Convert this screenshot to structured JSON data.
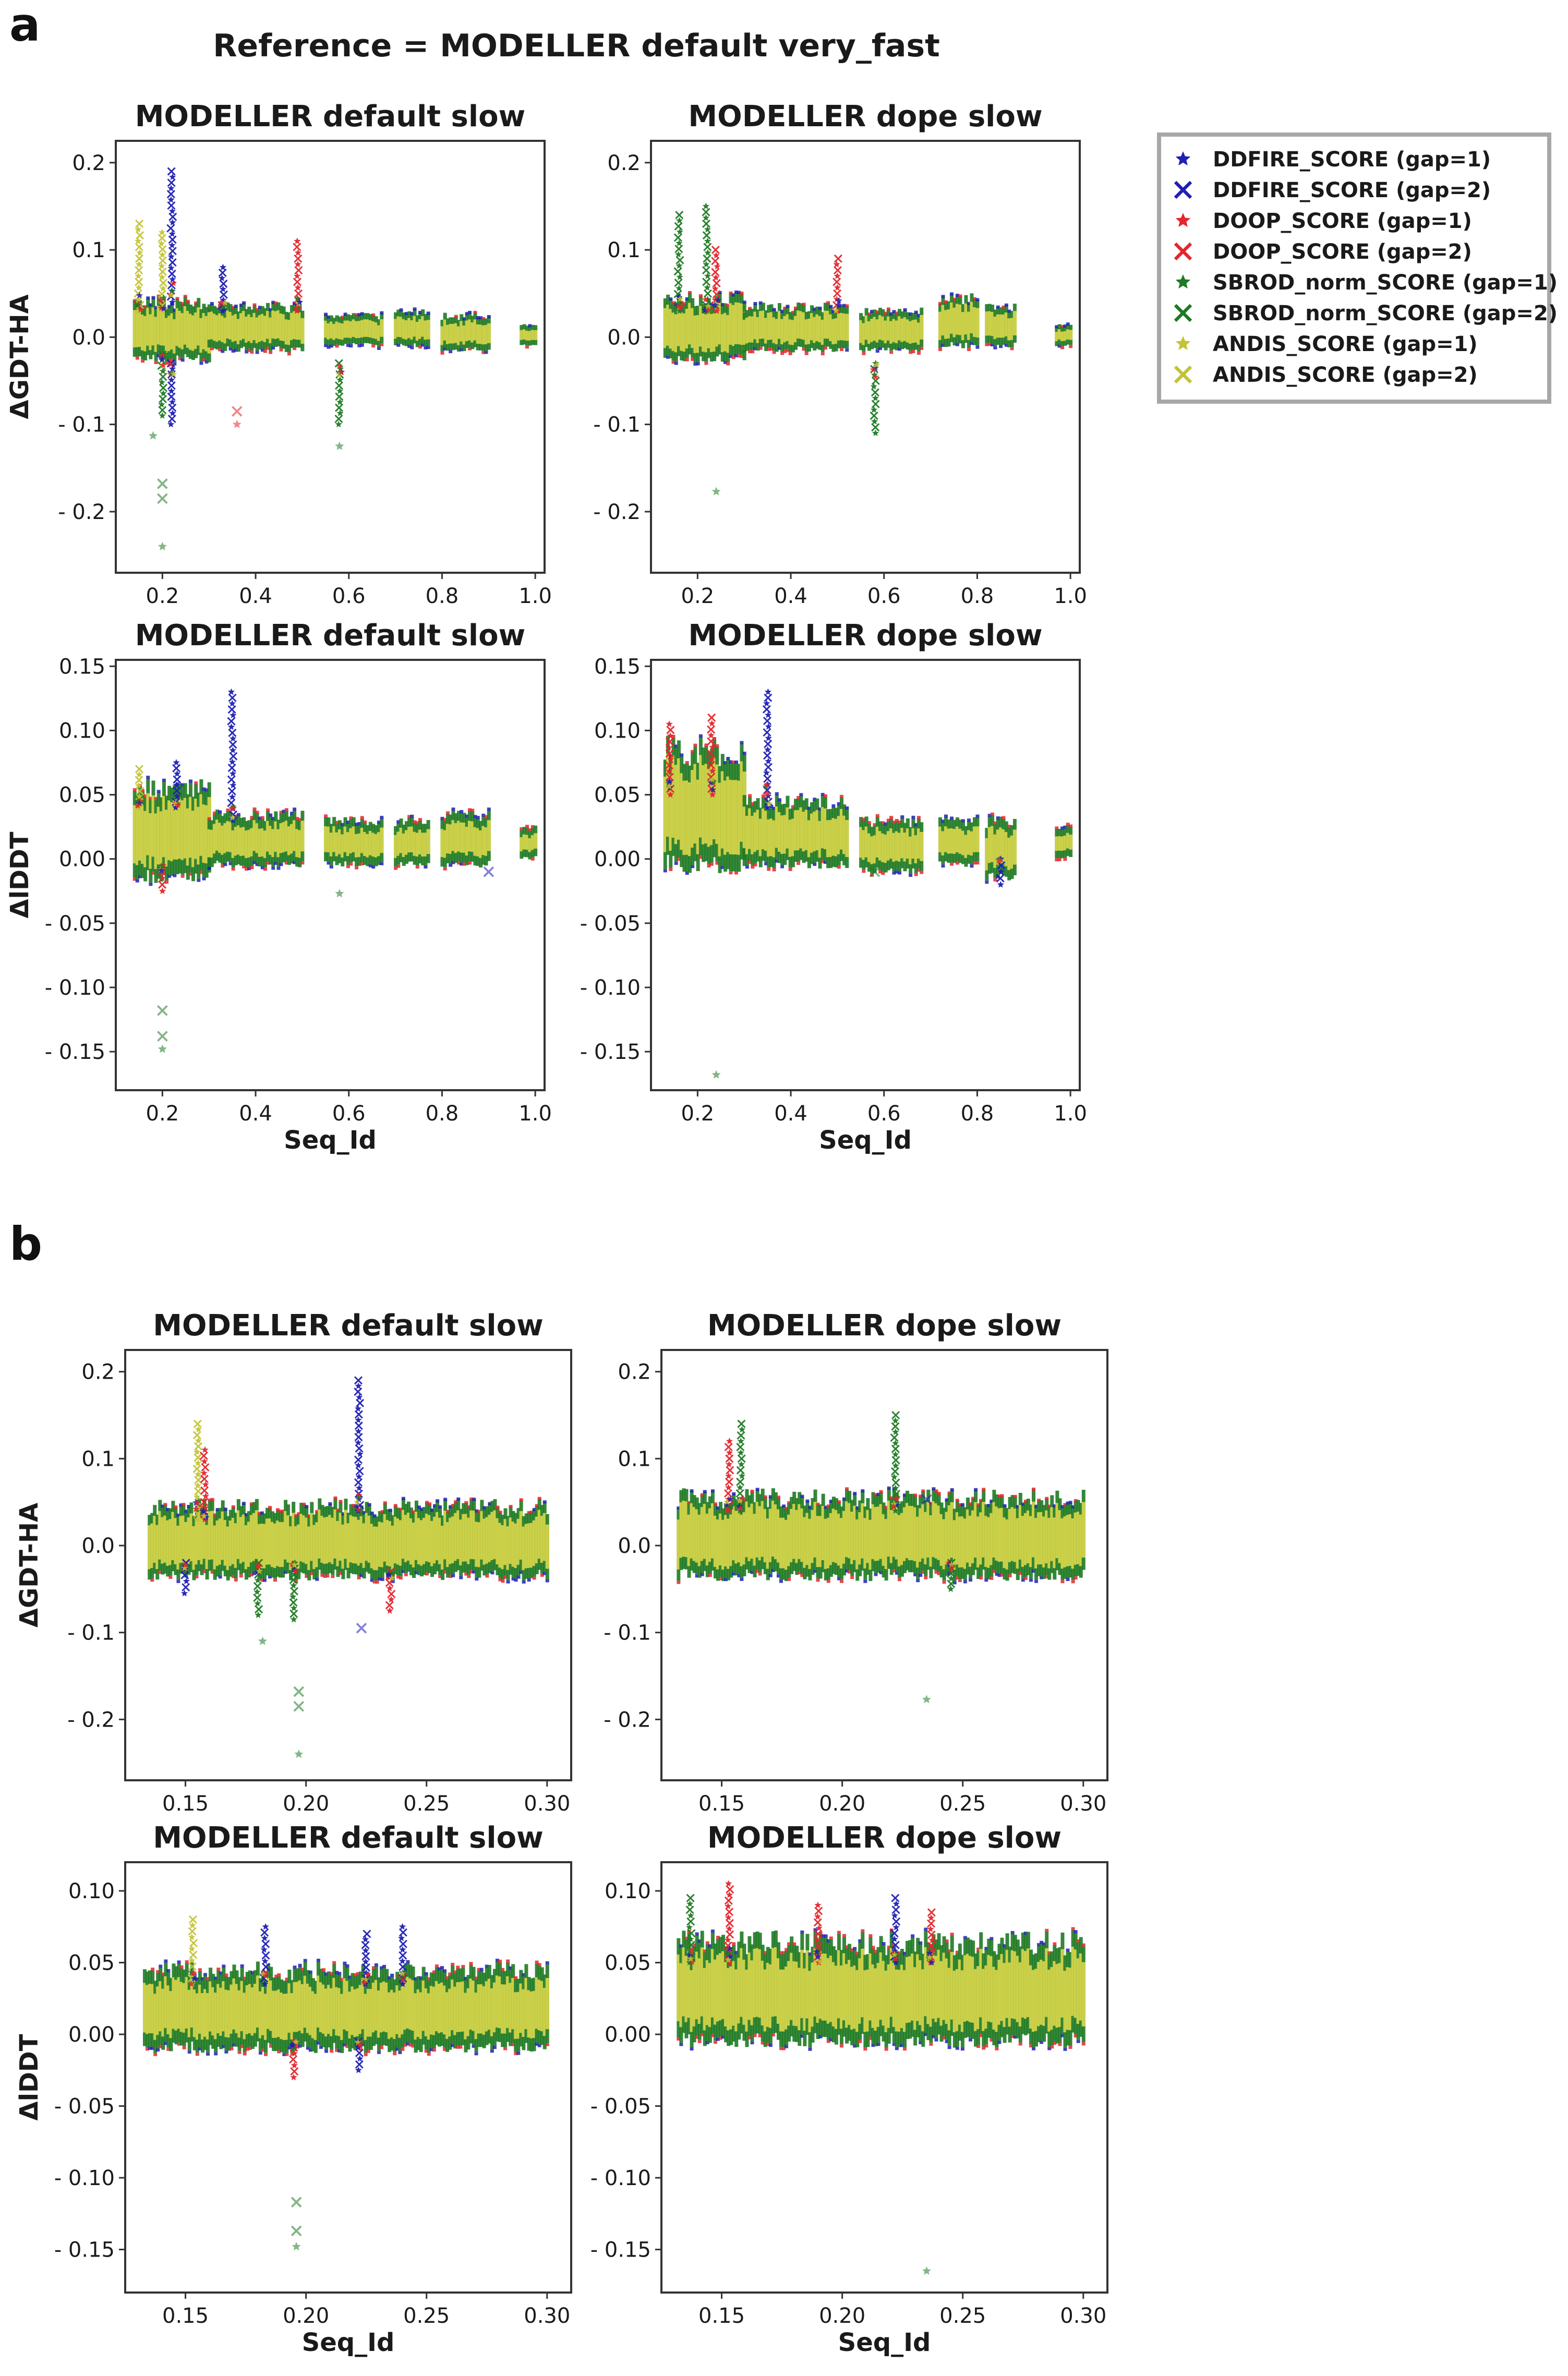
{
  "figure": {
    "panel_a_letter": "a",
    "panel_b_letter": "b",
    "panel_a_title": "Reference = MODELLER default very_fast"
  },
  "colors": {
    "DDFIRE": "#1f1fb4",
    "DOOP": "#e3262d",
    "SBROD": "#1f7a24",
    "ANDIS": "#c2c437",
    "ANDIS_core": "#d4d44a"
  },
  "legend": [
    {
      "label": "DDFIRE_SCORE (gap=1)",
      "marker": "star",
      "color": "#1f1fb4"
    },
    {
      "label": "DDFIRE_SCORE (gap=2)",
      "marker": "x",
      "color": "#1f1fb4"
    },
    {
      "label": "DOOP_SCORE (gap=1)",
      "marker": "star",
      "color": "#e3262d"
    },
    {
      "label": "DOOP_SCORE (gap=2)",
      "marker": "x",
      "color": "#e3262d"
    },
    {
      "label": "SBROD_norm_SCORE (gap=1)",
      "marker": "star",
      "color": "#1f7a24"
    },
    {
      "label": "SBROD_norm_SCORE (gap=2)",
      "marker": "x",
      "color": "#1f7a24"
    },
    {
      "label": "ANDIS_SCORE (gap=1)",
      "marker": "star",
      "color": "#c2c437"
    },
    {
      "label": "ANDIS_SCORE (gap=2)",
      "marker": "x",
      "color": "#c2c437"
    }
  ],
  "chart_data": [
    {
      "id": "a1",
      "type": "scatter",
      "title": "MODELLER default slow",
      "xlabel": "",
      "ylabel": "ΔGDT-HA",
      "xlim": [
        0.1,
        1.02
      ],
      "ylim": [
        -0.27,
        0.225
      ],
      "xticks": [
        0.2,
        0.4,
        0.6,
        0.8,
        1.0
      ],
      "xtick_labels": [
        "0.2",
        "0.4",
        "0.6",
        "0.8",
        "1.0"
      ],
      "yticks": [
        0.2,
        0.1,
        0.0,
        -0.1,
        -0.2
      ],
      "ytick_labels": [
        "0.2",
        "0.1",
        "0.0",
        "- 0.1",
        "- 0.2"
      ],
      "clusters": [
        {
          "x0": 0.14,
          "x1": 0.3,
          "lo": -0.02,
          "hi": 0.035
        },
        {
          "x0": 0.3,
          "x1": 0.5,
          "lo": -0.01,
          "hi": 0.03
        },
        {
          "x0": 0.55,
          "x1": 0.67,
          "lo": -0.005,
          "hi": 0.02
        },
        {
          "x0": 0.7,
          "x1": 0.77,
          "lo": -0.005,
          "hi": 0.025
        },
        {
          "x0": 0.8,
          "x1": 0.9,
          "lo": -0.01,
          "hi": 0.02
        },
        {
          "x0": 0.97,
          "x1": 1.0,
          "lo": -0.005,
          "hi": 0.01
        }
      ],
      "spikes": [
        {
          "x": 0.15,
          "lo": 0.03,
          "hi": 0.13,
          "s": "ANDIS"
        },
        {
          "x": 0.2,
          "lo": 0.03,
          "hi": 0.12,
          "s": "ANDIS"
        },
        {
          "x": 0.22,
          "lo": 0.04,
          "hi": 0.19,
          "s": "DDFIRE"
        },
        {
          "x": 0.33,
          "lo": 0.03,
          "hi": 0.08,
          "s": "DDFIRE"
        },
        {
          "x": 0.49,
          "lo": 0.03,
          "hi": 0.11,
          "s": "DOOP"
        },
        {
          "x": 0.2,
          "lo": -0.09,
          "hi": -0.02,
          "s": "SBROD"
        },
        {
          "x": 0.22,
          "lo": -0.1,
          "hi": -0.03,
          "s": "DDFIRE"
        },
        {
          "x": 0.58,
          "lo": -0.1,
          "hi": -0.03,
          "s": "SBROD"
        }
      ],
      "outliers": [
        {
          "x": 0.18,
          "y": -0.113,
          "s": "SBROD",
          "m": "star"
        },
        {
          "x": 0.2,
          "y": -0.168,
          "s": "SBROD",
          "m": "x"
        },
        {
          "x": 0.2,
          "y": -0.185,
          "s": "SBROD",
          "m": "x"
        },
        {
          "x": 0.2,
          "y": -0.24,
          "s": "SBROD",
          "m": "star"
        },
        {
          "x": 0.36,
          "y": -0.085,
          "s": "DOOP",
          "m": "x"
        },
        {
          "x": 0.36,
          "y": -0.1,
          "s": "DOOP",
          "m": "star"
        },
        {
          "x": 0.58,
          "y": -0.125,
          "s": "SBROD",
          "m": "star"
        }
      ]
    },
    {
      "id": "a2",
      "type": "scatter",
      "title": "MODELLER dope slow",
      "xlabel": "",
      "ylabel": "",
      "xlim": [
        0.1,
        1.02
      ],
      "ylim": [
        -0.27,
        0.225
      ],
      "xticks": [
        0.2,
        0.4,
        0.6,
        0.8,
        1.0
      ],
      "xtick_labels": [
        "0.2",
        "0.4",
        "0.6",
        "0.8",
        "1.0"
      ],
      "yticks": [
        0.2,
        0.1,
        0.0,
        -0.1,
        -0.2
      ],
      "ytick_labels": [
        "0.2",
        "0.1",
        "0.0",
        "- 0.1",
        "- 0.2"
      ],
      "clusters": [
        {
          "x0": 0.13,
          "x1": 0.3,
          "lo": -0.02,
          "hi": 0.04
        },
        {
          "x0": 0.3,
          "x1": 0.52,
          "lo": -0.01,
          "hi": 0.03
        },
        {
          "x0": 0.55,
          "x1": 0.68,
          "lo": -0.01,
          "hi": 0.025
        },
        {
          "x0": 0.72,
          "x1": 0.8,
          "lo": -0.005,
          "hi": 0.04
        },
        {
          "x0": 0.82,
          "x1": 0.88,
          "lo": -0.005,
          "hi": 0.03
        },
        {
          "x0": 0.97,
          "x1": 1.0,
          "lo": -0.005,
          "hi": 0.01
        }
      ],
      "spikes": [
        {
          "x": 0.16,
          "lo": 0.03,
          "hi": 0.14,
          "s": "SBROD"
        },
        {
          "x": 0.22,
          "lo": 0.03,
          "hi": 0.15,
          "s": "SBROD"
        },
        {
          "x": 0.24,
          "lo": 0.03,
          "hi": 0.1,
          "s": "DOOP"
        },
        {
          "x": 0.5,
          "lo": 0.03,
          "hi": 0.09,
          "s": "DOOP"
        },
        {
          "x": 0.58,
          "lo": -0.11,
          "hi": -0.03,
          "s": "SBROD"
        }
      ],
      "outliers": [
        {
          "x": 0.24,
          "y": -0.177,
          "s": "SBROD",
          "m": "star"
        }
      ]
    },
    {
      "id": "a3",
      "type": "scatter",
      "title": "MODELLER default slow",
      "xlabel": "Seq_Id",
      "ylabel": "ΔlDDT",
      "xlim": [
        0.1,
        1.02
      ],
      "ylim": [
        -0.18,
        0.155
      ],
      "xticks": [
        0.2,
        0.4,
        0.6,
        0.8,
        1.0
      ],
      "xtick_labels": [
        "0.2",
        "0.4",
        "0.6",
        "0.8",
        "1.0"
      ],
      "yticks": [
        0.15,
        0.1,
        0.05,
        0.0,
        -0.05,
        -0.1,
        -0.15
      ],
      "ytick_labels": [
        "0.15",
        "0.10",
        "0.05",
        "0.00",
        "- 0.05",
        "- 0.10",
        "- 0.15"
      ],
      "clusters": [
        {
          "x0": 0.14,
          "x1": 0.3,
          "lo": -0.01,
          "hi": 0.05
        },
        {
          "x0": 0.3,
          "x1": 0.5,
          "lo": 0.0,
          "hi": 0.03
        },
        {
          "x0": 0.55,
          "x1": 0.67,
          "lo": 0.0,
          "hi": 0.025
        },
        {
          "x0": 0.7,
          "x1": 0.77,
          "lo": 0.0,
          "hi": 0.025
        },
        {
          "x0": 0.8,
          "x1": 0.9,
          "lo": 0.0,
          "hi": 0.03
        },
        {
          "x0": 0.97,
          "x1": 1.0,
          "lo": 0.005,
          "hi": 0.02
        }
      ],
      "spikes": [
        {
          "x": 0.15,
          "lo": 0.04,
          "hi": 0.07,
          "s": "ANDIS"
        },
        {
          "x": 0.23,
          "lo": 0.04,
          "hi": 0.075,
          "s": "DDFIRE"
        },
        {
          "x": 0.35,
          "lo": 0.03,
          "hi": 0.13,
          "s": "DDFIRE"
        },
        {
          "x": 0.2,
          "lo": -0.025,
          "hi": -0.005,
          "s": "DOOP"
        }
      ],
      "outliers": [
        {
          "x": 0.2,
          "y": -0.118,
          "s": "SBROD",
          "m": "x"
        },
        {
          "x": 0.2,
          "y": -0.138,
          "s": "SBROD",
          "m": "x"
        },
        {
          "x": 0.2,
          "y": -0.148,
          "s": "SBROD",
          "m": "star"
        },
        {
          "x": 0.58,
          "y": -0.027,
          "s": "SBROD",
          "m": "star"
        },
        {
          "x": 0.9,
          "y": -0.01,
          "s": "DDFIRE",
          "m": "x"
        }
      ]
    },
    {
      "id": "a4",
      "type": "scatter",
      "title": "MODELLER dope slow",
      "xlabel": "Seq_Id",
      "ylabel": "",
      "xlim": [
        0.1,
        1.02
      ],
      "ylim": [
        -0.18,
        0.155
      ],
      "xticks": [
        0.2,
        0.4,
        0.6,
        0.8,
        1.0
      ],
      "xtick_labels": [
        "0.2",
        "0.4",
        "0.6",
        "0.8",
        "1.0"
      ],
      "yticks": [
        0.15,
        0.1,
        0.05,
        0.0,
        -0.05,
        -0.1,
        -0.15
      ],
      "ytick_labels": [
        "0.15",
        "0.10",
        "0.05",
        "0.00",
        "- 0.05",
        "- 0.10",
        "- 0.15"
      ],
      "clusters": [
        {
          "x0": 0.13,
          "x1": 0.3,
          "lo": 0.0,
          "hi": 0.08
        },
        {
          "x0": 0.3,
          "x1": 0.52,
          "lo": 0.0,
          "hi": 0.04
        },
        {
          "x0": 0.55,
          "x1": 0.68,
          "lo": -0.005,
          "hi": 0.025
        },
        {
          "x0": 0.72,
          "x1": 0.8,
          "lo": 0.0,
          "hi": 0.025
        },
        {
          "x0": 0.82,
          "x1": 0.88,
          "lo": -0.01,
          "hi": 0.025
        },
        {
          "x0": 0.97,
          "x1": 1.0,
          "lo": 0.005,
          "hi": 0.02
        }
      ],
      "spikes": [
        {
          "x": 0.14,
          "lo": 0.05,
          "hi": 0.105,
          "s": "DOOP"
        },
        {
          "x": 0.23,
          "lo": 0.05,
          "hi": 0.11,
          "s": "DOOP"
        },
        {
          "x": 0.35,
          "lo": 0.04,
          "hi": 0.13,
          "s": "DDFIRE"
        },
        {
          "x": 0.85,
          "lo": -0.02,
          "hi": 0.0,
          "s": "DDFIRE"
        }
      ],
      "outliers": [
        {
          "x": 0.24,
          "y": -0.168,
          "s": "SBROD",
          "m": "star"
        },
        {
          "x": 0.58,
          "y": -0.01,
          "s": "SBROD",
          "m": "x"
        }
      ]
    },
    {
      "id": "b1",
      "type": "scatter",
      "title": "MODELLER default slow",
      "xlabel": "",
      "ylabel": "ΔGDT-HA",
      "xlim": [
        0.125,
        0.31
      ],
      "ylim": [
        -0.27,
        0.225
      ],
      "xticks": [
        0.15,
        0.2,
        0.25,
        0.3
      ],
      "xtick_labels": [
        "0.15",
        "0.20",
        "0.25",
        "0.30"
      ],
      "yticks": [
        0.2,
        0.1,
        0.0,
        -0.1,
        -0.2
      ],
      "ytick_labels": [
        "0.2",
        "0.1",
        "0.0",
        "- 0.1",
        "- 0.2"
      ],
      "clusters": [
        {
          "x0": 0.135,
          "x1": 0.3,
          "lo": -0.03,
          "hi": 0.04
        }
      ],
      "spikes": [
        {
          "x": 0.155,
          "lo": 0.03,
          "hi": 0.14,
          "s": "ANDIS"
        },
        {
          "x": 0.158,
          "lo": 0.03,
          "hi": 0.11,
          "s": "DOOP"
        },
        {
          "x": 0.222,
          "lo": 0.04,
          "hi": 0.19,
          "s": "DDFIRE"
        },
        {
          "x": 0.18,
          "lo": -0.08,
          "hi": -0.02,
          "s": "SBROD"
        },
        {
          "x": 0.195,
          "lo": -0.085,
          "hi": -0.02,
          "s": "SBROD"
        },
        {
          "x": 0.235,
          "lo": -0.075,
          "hi": -0.03,
          "s": "DOOP"
        },
        {
          "x": 0.15,
          "lo": -0.055,
          "hi": -0.02,
          "s": "DDFIRE"
        }
      ],
      "outliers": [
        {
          "x": 0.182,
          "y": -0.11,
          "s": "SBROD",
          "m": "star"
        },
        {
          "x": 0.197,
          "y": -0.168,
          "s": "SBROD",
          "m": "x"
        },
        {
          "x": 0.197,
          "y": -0.185,
          "s": "SBROD",
          "m": "x"
        },
        {
          "x": 0.197,
          "y": -0.24,
          "s": "SBROD",
          "m": "star"
        },
        {
          "x": 0.223,
          "y": -0.095,
          "s": "DDFIRE",
          "m": "x"
        }
      ]
    },
    {
      "id": "b2",
      "type": "scatter",
      "title": "MODELLER dope slow",
      "xlabel": "",
      "ylabel": "",
      "xlim": [
        0.125,
        0.31
      ],
      "ylim": [
        -0.27,
        0.225
      ],
      "xticks": [
        0.15,
        0.2,
        0.25,
        0.3
      ],
      "xtick_labels": [
        "0.15",
        "0.20",
        "0.25",
        "0.30"
      ],
      "yticks": [
        0.2,
        0.1,
        0.0,
        -0.1,
        -0.2
      ],
      "ytick_labels": [
        "0.2",
        "0.1",
        "0.0",
        "- 0.1",
        "- 0.2"
      ],
      "clusters": [
        {
          "x0": 0.132,
          "x1": 0.3,
          "lo": -0.03,
          "hi": 0.05
        }
      ],
      "spikes": [
        {
          "x": 0.153,
          "lo": 0.04,
          "hi": 0.12,
          "s": "DOOP"
        },
        {
          "x": 0.158,
          "lo": 0.04,
          "hi": 0.14,
          "s": "SBROD"
        },
        {
          "x": 0.222,
          "lo": 0.04,
          "hi": 0.15,
          "s": "SBROD"
        },
        {
          "x": 0.245,
          "lo": -0.05,
          "hi": -0.02,
          "s": "SBROD"
        }
      ],
      "outliers": [
        {
          "x": 0.235,
          "y": -0.177,
          "s": "SBROD",
          "m": "star"
        },
        {
          "x": 0.235,
          "y": 0.053,
          "s": "DDFIRE",
          "m": "x"
        }
      ]
    },
    {
      "id": "b3",
      "type": "scatter",
      "title": "MODELLER default slow",
      "xlabel": "Seq_Id",
      "ylabel": "ΔlDDT",
      "xlim": [
        0.125,
        0.31
      ],
      "ylim": [
        -0.18,
        0.12
      ],
      "xticks": [
        0.15,
        0.2,
        0.25,
        0.3
      ],
      "xtick_labels": [
        "0.15",
        "0.20",
        "0.25",
        "0.30"
      ],
      "yticks": [
        0.1,
        0.05,
        0.0,
        -0.05,
        -0.1,
        -0.15
      ],
      "ytick_labels": [
        "0.10",
        "0.05",
        "0.00",
        "- 0.05",
        "- 0.10",
        "- 0.15"
      ],
      "clusters": [
        {
          "x0": 0.133,
          "x1": 0.3,
          "lo": -0.005,
          "hi": 0.04
        }
      ],
      "spikes": [
        {
          "x": 0.153,
          "lo": 0.035,
          "hi": 0.08,
          "s": "ANDIS"
        },
        {
          "x": 0.183,
          "lo": 0.035,
          "hi": 0.075,
          "s": "DDFIRE"
        },
        {
          "x": 0.225,
          "lo": 0.035,
          "hi": 0.07,
          "s": "DDFIRE"
        },
        {
          "x": 0.24,
          "lo": 0.035,
          "hi": 0.075,
          "s": "DDFIRE"
        },
        {
          "x": 0.195,
          "lo": -0.03,
          "hi": -0.005,
          "s": "DOOP"
        },
        {
          "x": 0.222,
          "lo": -0.025,
          "hi": -0.005,
          "s": "DDFIRE"
        }
      ],
      "outliers": [
        {
          "x": 0.196,
          "y": -0.117,
          "s": "SBROD",
          "m": "x"
        },
        {
          "x": 0.196,
          "y": -0.137,
          "s": "SBROD",
          "m": "x"
        },
        {
          "x": 0.196,
          "y": -0.148,
          "s": "SBROD",
          "m": "star"
        }
      ]
    },
    {
      "id": "b4",
      "type": "scatter",
      "title": "MODELLER dope slow",
      "xlabel": "Seq_Id",
      "ylabel": "",
      "xlim": [
        0.125,
        0.31
      ],
      "ylim": [
        -0.18,
        0.12
      ],
      "xticks": [
        0.15,
        0.2,
        0.25,
        0.3
      ],
      "xtick_labels": [
        "0.15",
        "0.20",
        "0.25",
        "0.30"
      ],
      "yticks": [
        0.1,
        0.05,
        0.0,
        -0.05,
        -0.1,
        -0.15
      ],
      "ytick_labels": [
        "0.10",
        "0.05",
        "0.00",
        "- 0.05",
        "- 0.10",
        "- 0.15"
      ],
      "clusters": [
        {
          "x0": 0.132,
          "x1": 0.3,
          "lo": 0.0,
          "hi": 0.06
        }
      ],
      "spikes": [
        {
          "x": 0.137,
          "lo": 0.05,
          "hi": 0.095,
          "s": "SBROD"
        },
        {
          "x": 0.153,
          "lo": 0.05,
          "hi": 0.105,
          "s": "DOOP"
        },
        {
          "x": 0.19,
          "lo": 0.05,
          "hi": 0.09,
          "s": "DOOP"
        },
        {
          "x": 0.222,
          "lo": 0.05,
          "hi": 0.095,
          "s": "DDFIRE"
        },
        {
          "x": 0.237,
          "lo": 0.05,
          "hi": 0.085,
          "s": "DOOP"
        }
      ],
      "outliers": [
        {
          "x": 0.235,
          "y": -0.165,
          "s": "SBROD",
          "m": "star"
        }
      ]
    }
  ]
}
